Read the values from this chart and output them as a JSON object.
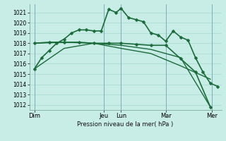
{
  "background_color": "#c8ece6",
  "grid_color": "#a8d8d0",
  "line_color": "#1a6b3a",
  "xlabel": "Pression niveau de la mer( hPa )",
  "ylim": [
    1011.5,
    1021.8
  ],
  "yticks": [
    1012,
    1013,
    1014,
    1015,
    1016,
    1017,
    1018,
    1019,
    1020,
    1021
  ],
  "xlim": [
    0,
    310
  ],
  "day_labels": [
    "Dim",
    "Jeu",
    "Lun",
    "Mar",
    "Mer"
  ],
  "day_positions": [
    8,
    120,
    148,
    220,
    295
  ],
  "vline_positions": [
    8,
    120,
    148,
    220,
    295
  ],
  "series": [
    {
      "x": [
        8,
        20,
        32,
        44,
        56,
        68,
        80,
        92,
        104,
        116,
        128,
        140,
        148,
        160,
        172,
        184,
        196,
        208,
        220,
        232,
        244,
        256,
        268,
        280,
        292,
        304
      ],
      "y": [
        1015.5,
        1016.6,
        1017.3,
        1018.0,
        1018.4,
        1019.0,
        1019.3,
        1019.3,
        1019.2,
        1019.2,
        1021.3,
        1021.0,
        1021.4,
        1020.5,
        1020.3,
        1020.1,
        1019.0,
        1018.8,
        1018.2,
        1019.2,
        1018.6,
        1018.3,
        1016.6,
        1015.2,
        1014.1,
        1013.8
      ],
      "marker": "D",
      "markersize": 2.5,
      "linewidth": 1.2
    },
    {
      "x": [
        8,
        32,
        56,
        80,
        104,
        128,
        148,
        172,
        196,
        220,
        244,
        268,
        292
      ],
      "y": [
        1018.0,
        1018.1,
        1018.1,
        1018.1,
        1018.0,
        1018.0,
        1018.0,
        1017.9,
        1017.8,
        1017.8,
        1016.5,
        1015.2,
        1011.8
      ],
      "marker": "D",
      "markersize": 2.5,
      "linewidth": 1.2
    },
    {
      "x": [
        8,
        56,
        104,
        148,
        196,
        244,
        292
      ],
      "y": [
        1018.0,
        1018.1,
        1018.0,
        1017.8,
        1017.4,
        1016.6,
        1011.8
      ],
      "marker": null,
      "markersize": 0,
      "linewidth": 1.0
    },
    {
      "x": [
        8,
        56,
        104,
        148,
        196,
        244,
        292
      ],
      "y": [
        1015.5,
        1017.5,
        1018.0,
        1017.5,
        1017.0,
        1015.8,
        1014.5
      ],
      "marker": null,
      "markersize": 0,
      "linewidth": 1.0
    }
  ]
}
